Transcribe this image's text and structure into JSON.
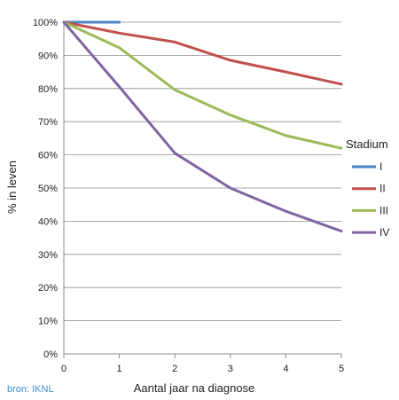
{
  "chart_data": {
    "type": "line",
    "xlabel": "Aantal jaar na diagnose",
    "ylabel": "% in leven",
    "x_ticks": [
      0,
      1,
      2,
      3,
      4,
      5
    ],
    "y_ticks": [
      0,
      10,
      20,
      30,
      40,
      50,
      60,
      70,
      80,
      90,
      100
    ],
    "y_tick_suffix": "%",
    "xlim": [
      0,
      5
    ],
    "ylim": [
      0,
      100
    ],
    "grid": "horizontal",
    "legend": {
      "title": "Stadium",
      "placement": "right"
    },
    "series": [
      {
        "name": "I",
        "color": "#4a86c6",
        "x": [
          0,
          1
        ],
        "y": [
          100,
          100
        ]
      },
      {
        "name": "II",
        "color": "#c0504d",
        "x": [
          0,
          1,
          2,
          3,
          4,
          5
        ],
        "y": [
          100,
          96.7,
          94,
          88.5,
          85,
          81.3
        ]
      },
      {
        "name": "III",
        "color": "#9bbb59",
        "x": [
          0,
          1,
          2,
          3,
          4,
          5
        ],
        "y": [
          100,
          92.3,
          79.6,
          72,
          65.8,
          62
        ]
      },
      {
        "name": "IV",
        "color": "#8064a2",
        "x": [
          0,
          1,
          2,
          3,
          4,
          5
        ],
        "y": [
          100,
          80.5,
          60.5,
          50,
          43,
          37
        ]
      }
    ]
  },
  "source_note": "bron: IKNL"
}
